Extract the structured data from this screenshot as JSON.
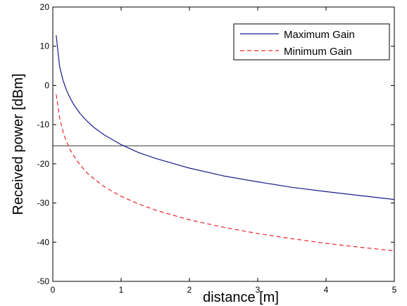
{
  "chart_data": {
    "type": "line",
    "title": "",
    "xlabel": "distance [m]",
    "ylabel": "Received power [dBm]",
    "xlim": [
      0,
      5
    ],
    "ylim": [
      -50,
      20
    ],
    "x_ticks": [
      "0",
      "1",
      "2",
      "3",
      "4",
      "5"
    ],
    "y_ticks": [
      "20",
      "10",
      "0",
      "-10",
      "-20",
      "-30",
      "-40",
      "-50"
    ],
    "grid": false,
    "legend_position": "top-right",
    "series": [
      {
        "name": "Maximum Gain",
        "color": "#1a1a8c",
        "style": "solid",
        "x": [
          0.05,
          0.1,
          0.15,
          0.2,
          0.25,
          0.3,
          0.4,
          0.5,
          0.6,
          0.75,
          1.0,
          1.25,
          1.5,
          2.0,
          2.5,
          3.0,
          3.5,
          4.0,
          4.5,
          5.0
        ],
        "y": [
          12.8,
          4.8,
          1.3,
          -1.2,
          -3.1,
          -4.7,
          -7.2,
          -9.1,
          -10.7,
          -12.6,
          -15.1,
          -17.1,
          -18.6,
          -21.1,
          -23.1,
          -24.6,
          -26.0,
          -27.1,
          -28.1,
          -29.1
        ]
      },
      {
        "name": "Minimum Gain",
        "color": "#e8262a",
        "style": "dashed",
        "x": [
          0.05,
          0.1,
          0.15,
          0.2,
          0.25,
          0.3,
          0.4,
          0.5,
          0.6,
          0.75,
          1.0,
          1.25,
          1.5,
          2.0,
          2.5,
          3.0,
          3.5,
          4.0,
          4.5,
          5.0
        ],
        "y": [
          -2.3,
          -8.3,
          -11.8,
          -14.3,
          -16.3,
          -17.8,
          -20.3,
          -22.3,
          -23.8,
          -25.8,
          -28.3,
          -30.2,
          -31.8,
          -34.3,
          -36.2,
          -37.8,
          -39.1,
          -40.3,
          -41.3,
          -42.2
        ]
      }
    ],
    "reference_line": {
      "y": -15.4,
      "color": "#333333"
    }
  }
}
